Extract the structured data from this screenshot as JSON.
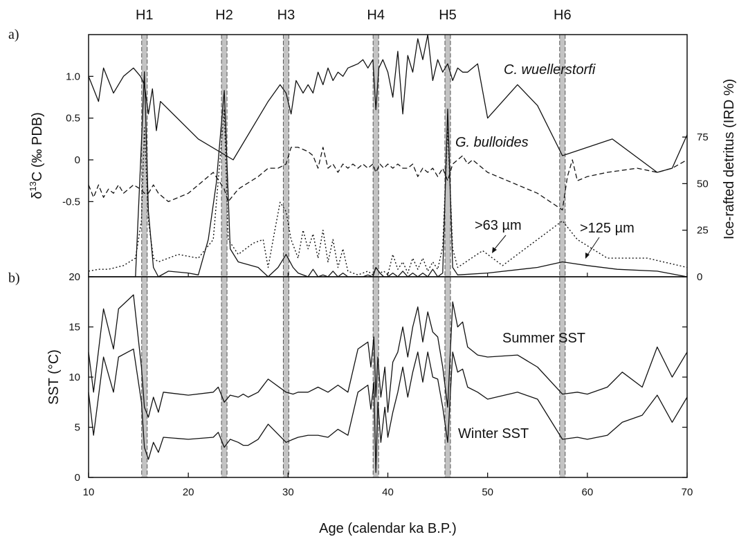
{
  "chart_data": [
    {
      "panel": "a)",
      "type": "line",
      "xlabel": "Age (calendar ka B.P.)",
      "xlim": [
        10,
        70
      ],
      "x_ticks": [
        10,
        20,
        30,
        40,
        50,
        60,
        70
      ],
      "ylabel_left": "δ13C (‰ PDB)",
      "ylabel_left_base": "δ",
      "ylabel_left_sup": "13",
      "ylabel_left_rest": "C (‰ PDB)",
      "ylim_left": [
        -1.4,
        1.5
      ],
      "y_ticks_left": [
        {
          "value": 1.0,
          "label": "1.0"
        },
        {
          "value": 0.5,
          "label": "0.5"
        },
        {
          "value": 0,
          "label": "0"
        },
        {
          "value": -0.5,
          "label": "-0.5"
        }
      ],
      "ylabel_right": "Ice-rafted detritus (IRD %)",
      "ylim_right": [
        0,
        130
      ],
      "y_ticks_right": [
        0,
        25,
        50,
        75
      ],
      "events": [
        {
          "label": "H1",
          "x": 15.6
        },
        {
          "label": "H2",
          "x": 23.6
        },
        {
          "label": "H3",
          "x": 29.8
        },
        {
          "label": "H4",
          "x": 38.8
        },
        {
          "label": "H5",
          "x": 46.0
        },
        {
          "label": "H6",
          "x": 57.5
        }
      ],
      "series": [
        {
          "name": "C. wuellerstorfi",
          "axis": "left",
          "style": "solid",
          "x": [
            10,
            11,
            11.5,
            12.5,
            13.5,
            14.5,
            15.2,
            15.6,
            16,
            16.4,
            16.8,
            17.2,
            21,
            24.5,
            28,
            29.2,
            29.8,
            30.3,
            30.8,
            31.5,
            32,
            32.5,
            33,
            33.5,
            34,
            34.5,
            35,
            35.5,
            36,
            37,
            37.5,
            38,
            38.5,
            38.8,
            39.1,
            39.5,
            40,
            40.5,
            41,
            41.5,
            42,
            42.5,
            43,
            43.5,
            44,
            44.5,
            45,
            45.5,
            46,
            46.5,
            47,
            47.5,
            48,
            49,
            50,
            53,
            55,
            57.5,
            62.5,
            67,
            68.5,
            70
          ],
          "y": [
            1.0,
            0.7,
            1.1,
            0.8,
            1.0,
            1.1,
            1.0,
            0.9,
            0.55,
            0.85,
            0.35,
            0.7,
            0.25,
            0.0,
            0.7,
            0.9,
            0.8,
            0.55,
            0.95,
            0.8,
            0.9,
            0.8,
            1.05,
            0.9,
            1.1,
            0.95,
            1.05,
            1.0,
            1.1,
            1.15,
            1.2,
            1.1,
            1.2,
            0.6,
            1.1,
            1.2,
            1.05,
            0.75,
            1.3,
            0.55,
            1.25,
            1.05,
            1.45,
            1.2,
            1.5,
            0.95,
            1.2,
            1.05,
            1.15,
            0.95,
            1.1,
            1.05,
            1.05,
            1.15,
            0.5,
            0.9,
            0.65,
            0.05,
            0.25,
            -0.15,
            -0.1,
            0.3
          ]
        },
        {
          "name": "G. bulloides",
          "axis": "left",
          "style": "dashed",
          "x": [
            10,
            10.5,
            11,
            11.5,
            12,
            12.5,
            13,
            13.5,
            14,
            14.5,
            15.2,
            15.6,
            16,
            16.5,
            17,
            18,
            20,
            22.5,
            23.6,
            24,
            25,
            27,
            28,
            29,
            29.8,
            30.3,
            31,
            32,
            32.5,
            33,
            33.5,
            34,
            34.5,
            35,
            35.5,
            36,
            36.5,
            37,
            37.5,
            38,
            38.5,
            38.8,
            39.2,
            39.6,
            40,
            40.5,
            41,
            41.5,
            42,
            42.5,
            43,
            43.5,
            44,
            44.5,
            45,
            45.5,
            46,
            46.5,
            47,
            47.5,
            48,
            48.5,
            50,
            52,
            55,
            57.5,
            58,
            58.5,
            59,
            60,
            62,
            65,
            67,
            68.5,
            70
          ],
          "y": [
            -0.3,
            -0.45,
            -0.3,
            -0.45,
            -0.35,
            -0.4,
            -0.3,
            -0.4,
            -0.35,
            -0.3,
            -0.35,
            -0.4,
            -0.4,
            -0.3,
            -0.4,
            -0.5,
            -0.4,
            -0.15,
            -0.35,
            -0.5,
            -0.35,
            -0.2,
            -0.1,
            -0.1,
            -0.05,
            0.15,
            0.15,
            0.1,
            0.05,
            -0.1,
            0.15,
            -0.1,
            -0.05,
            -0.15,
            -0.05,
            -0.1,
            -0.05,
            -0.1,
            -0.05,
            -0.1,
            -0.05,
            -0.15,
            -0.05,
            -0.1,
            -0.05,
            -0.1,
            -0.05,
            -0.1,
            -0.1,
            -0.05,
            -0.2,
            -0.1,
            -0.15,
            -0.1,
            -0.2,
            -0.1,
            -0.25,
            -0.05,
            0.0,
            0.05,
            -0.05,
            0.0,
            -0.15,
            -0.25,
            -0.4,
            -0.6,
            -0.2,
            0.0,
            -0.25,
            -0.2,
            -0.15,
            -0.1,
            -0.15,
            -0.1,
            0.0
          ]
        },
        {
          "name": ">63 µm",
          "axis": "right",
          "style": "dotted",
          "x": [
            10,
            11,
            12,
            13.5,
            14.7,
            15.3,
            15.6,
            16,
            16.5,
            17,
            18,
            19,
            21,
            22.5,
            23.6,
            24,
            25,
            26.5,
            27.5,
            28,
            28.5,
            29.2,
            29.8,
            30.3,
            31,
            31.5,
            32,
            32.5,
            33,
            33.5,
            34,
            34.5,
            35,
            35.5,
            36,
            36.5,
            37,
            37.5,
            38,
            38.5,
            38.8,
            39.2,
            39.6,
            40,
            40.5,
            41,
            41.5,
            42,
            42.5,
            43,
            43.5,
            44,
            44.5,
            45,
            45.5,
            46,
            46.5,
            47,
            49.5,
            51.5,
            54,
            57.5,
            59,
            62,
            66,
            70
          ],
          "y": [
            3,
            4,
            4,
            6,
            10,
            30,
            80,
            30,
            10,
            8,
            10,
            12,
            10,
            20,
            90,
            20,
            12,
            18,
            20,
            5,
            20,
            40,
            35,
            20,
            10,
            25,
            15,
            23,
            10,
            25,
            8,
            20,
            5,
            15,
            3,
            2,
            1,
            2,
            3,
            1,
            5,
            2,
            3,
            1,
            12,
            4,
            8,
            2,
            10,
            4,
            10,
            3,
            8,
            4,
            16,
            80,
            15,
            5,
            14,
            6,
            16,
            30,
            20,
            10,
            10,
            5
          ]
        },
        {
          "name": ">125 µm",
          "axis": "right",
          "style": "solid",
          "x": [
            10,
            11,
            12,
            13,
            14,
            14.7,
            15.2,
            15.6,
            16,
            16.5,
            17,
            18,
            20,
            21,
            22,
            22.8,
            23.6,
            24.2,
            25,
            27,
            28,
            29,
            29.8,
            30.5,
            31,
            32,
            32.5,
            33,
            33.5,
            34,
            34.5,
            35,
            35.5,
            36,
            37,
            37.5,
            38,
            38.5,
            38.8,
            39.2,
            39.6,
            40,
            40.5,
            41,
            41.5,
            42,
            42.5,
            43,
            43.5,
            44,
            44.5,
            45,
            45.5,
            46,
            46.5,
            47,
            50,
            55,
            57.5,
            60,
            63,
            67,
            70
          ],
          "y": [
            0,
            0,
            0,
            0,
            0,
            0,
            60,
            110,
            35,
            5,
            0,
            3,
            2,
            1,
            20,
            50,
            100,
            15,
            8,
            5,
            0,
            5,
            12,
            5,
            2,
            0,
            4,
            0,
            1,
            0,
            3,
            0,
            2,
            0,
            0,
            0,
            1,
            0,
            5,
            2,
            0,
            0,
            2,
            0,
            3,
            0,
            2,
            0,
            2,
            0,
            4,
            0,
            2,
            90,
            5,
            1,
            2,
            5,
            8,
            6,
            4,
            3,
            0
          ]
        }
      ],
      "annotations": [
        {
          "text": "C. wuellerstorfi",
          "italic": true
        },
        {
          "text": "G. bulloides",
          "italic": true
        },
        {
          "text": ">63 µm",
          "italic": false
        },
        {
          "text": ">125 µm",
          "italic": false
        }
      ]
    },
    {
      "panel": "b)",
      "type": "line",
      "xlabel": "Age (calendar ka B.P.)",
      "xlim": [
        10,
        70
      ],
      "ylabel": "SST (°C)",
      "ylim": [
        0,
        20
      ],
      "y_ticks": [
        0,
        5,
        10,
        15,
        20
      ],
      "series": [
        {
          "name": "Summer SST",
          "x": [
            10,
            10.5,
            11.5,
            12.5,
            13,
            14.5,
            15.3,
            15.6,
            16,
            16.5,
            17,
            17.5,
            20,
            22.5,
            23,
            23.6,
            24.2,
            25,
            25.5,
            26,
            27,
            28,
            29.8,
            30.5,
            31,
            32,
            33,
            34,
            35,
            36,
            37,
            38,
            38.3,
            38.6,
            38.8,
            39,
            39.3,
            39.7,
            40,
            40.5,
            41,
            41.5,
            42,
            42.5,
            43,
            43.5,
            44,
            44.5,
            45,
            45.5,
            46,
            46.5,
            47,
            47.5,
            48,
            49,
            50,
            53,
            55,
            57.5,
            59,
            60,
            62,
            63.5,
            65.5,
            67,
            68.5,
            70
          ],
          "y": [
            12.5,
            8.5,
            16.8,
            12.8,
            16.8,
            18.2,
            11,
            7,
            6,
            8,
            6.5,
            8.5,
            8.2,
            8.5,
            9,
            7.5,
            8.2,
            8,
            8.3,
            8,
            8.5,
            9.8,
            8.5,
            8.3,
            8.5,
            8.5,
            9,
            8.5,
            9.2,
            8.5,
            12.8,
            13.5,
            11,
            14,
            8,
            12,
            8,
            11,
            6.5,
            11.5,
            12.5,
            15,
            12,
            15,
            17,
            13.5,
            16.5,
            14.5,
            14,
            11,
            7,
            17.5,
            15,
            15.5,
            13,
            12.2,
            12,
            12.2,
            11,
            8.3,
            8.5,
            8.3,
            9,
            10.5,
            9,
            13,
            10,
            12.5
          ]
        },
        {
          "name": "Winter SST",
          "x": [
            10,
            10.5,
            11.5,
            12.5,
            13,
            14.5,
            15.3,
            15.6,
            16,
            16.5,
            17,
            17.5,
            20,
            22.5,
            23,
            23.6,
            24.2,
            25,
            25.5,
            26,
            27,
            28,
            29.8,
            30.5,
            31,
            32,
            33,
            34,
            35,
            36,
            37,
            38,
            38.3,
            38.6,
            38.8,
            39,
            39.3,
            39.7,
            40,
            40.5,
            41,
            41.5,
            42,
            42.5,
            43,
            43.5,
            44,
            44.5,
            45,
            45.5,
            46,
            46.5,
            47,
            47.5,
            48,
            49,
            50,
            53,
            55,
            57.5,
            59,
            60,
            62,
            63.5,
            65.5,
            67,
            68.5,
            70
          ],
          "y": [
            8.5,
            4.2,
            12,
            8.5,
            12,
            12.8,
            7.5,
            3,
            1.8,
            3.5,
            2.5,
            4,
            3.8,
            4,
            4.5,
            3,
            3.8,
            3.5,
            3.2,
            3.2,
            3.8,
            5.3,
            3.5,
            3.8,
            4,
            4.2,
            4.2,
            4,
            4.8,
            4.2,
            8.5,
            9.2,
            6.8,
            9.5,
            0.5,
            7.5,
            3.5,
            7,
            4,
            6.5,
            8.5,
            11,
            8,
            10.5,
            12.5,
            9.5,
            12.5,
            10,
            9.8,
            7,
            3.5,
            12.5,
            10.5,
            10.8,
            9,
            8.5,
            7.8,
            8.5,
            7.8,
            3.8,
            4,
            3.8,
            4.2,
            5.5,
            6.2,
            8.2,
            5.5,
            8
          ]
        }
      ],
      "annotations": [
        {
          "text": "Summer SST"
        },
        {
          "text": "Winter SST"
        }
      ]
    }
  ]
}
